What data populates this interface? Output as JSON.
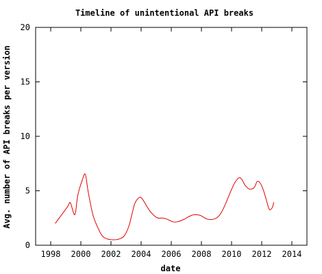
{
  "chart_data": {
    "type": "line",
    "title": "Timeline of unintentional API breaks",
    "xlabel": "date",
    "ylabel": "Avg. number of API breaks per version",
    "xlim": [
      1997,
      2015
    ],
    "ylim": [
      0,
      20
    ],
    "x_ticks": [
      1998,
      2000,
      2002,
      2004,
      2006,
      2008,
      2010,
      2012,
      2014
    ],
    "y_ticks": [
      0,
      5,
      10,
      15,
      20
    ],
    "grid": false,
    "legend": "none",
    "series": [
      {
        "color": "#e00000",
        "points": [
          [
            1998.3,
            2.0
          ],
          [
            1999.1,
            3.5
          ],
          [
            1999.3,
            3.9
          ],
          [
            1999.6,
            2.8
          ],
          [
            1999.8,
            4.6
          ],
          [
            2000.1,
            6.0
          ],
          [
            2000.3,
            6.5
          ],
          [
            2000.5,
            4.8
          ],
          [
            2000.8,
            2.8
          ],
          [
            2001.1,
            1.7
          ],
          [
            2001.4,
            0.9
          ],
          [
            2001.7,
            0.6
          ],
          [
            2002.2,
            0.5
          ],
          [
            2002.6,
            0.6
          ],
          [
            2002.9,
            0.9
          ],
          [
            2003.2,
            1.8
          ],
          [
            2003.4,
            2.9
          ],
          [
            2003.6,
            3.9
          ],
          [
            2003.9,
            4.4
          ],
          [
            2004.1,
            4.2
          ],
          [
            2004.5,
            3.3
          ],
          [
            2004.8,
            2.8
          ],
          [
            2005.1,
            2.5
          ],
          [
            2005.4,
            2.5
          ],
          [
            2005.7,
            2.4
          ],
          [
            2006.1,
            2.15
          ],
          [
            2006.4,
            2.15
          ],
          [
            2006.8,
            2.35
          ],
          [
            2007.2,
            2.65
          ],
          [
            2007.5,
            2.8
          ],
          [
            2007.9,
            2.75
          ],
          [
            2008.3,
            2.45
          ],
          [
            2008.6,
            2.35
          ],
          [
            2009.0,
            2.5
          ],
          [
            2009.3,
            2.95
          ],
          [
            2009.6,
            3.8
          ],
          [
            2009.9,
            4.8
          ],
          [
            2010.2,
            5.7
          ],
          [
            2010.5,
            6.2
          ],
          [
            2010.7,
            6.0
          ],
          [
            2010.9,
            5.5
          ],
          [
            2011.2,
            5.15
          ],
          [
            2011.5,
            5.3
          ],
          [
            2011.7,
            5.85
          ],
          [
            2011.9,
            5.7
          ],
          [
            2012.1,
            5.1
          ],
          [
            2012.3,
            4.2
          ],
          [
            2012.5,
            3.3
          ],
          [
            2012.7,
            3.45
          ],
          [
            2012.8,
            3.95
          ]
        ]
      }
    ]
  }
}
